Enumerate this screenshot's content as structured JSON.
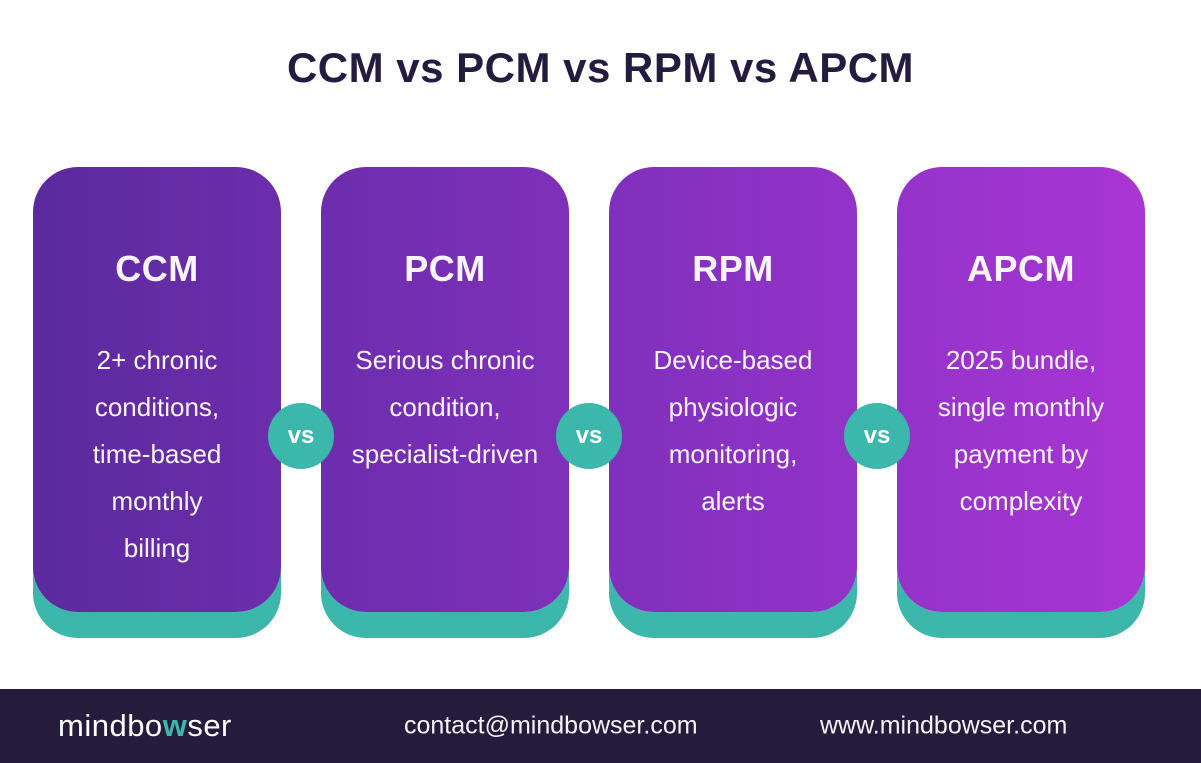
{
  "title": "CCM vs PCM vs RPM vs APCM",
  "vs_label": "vs",
  "colors": {
    "background": "#ffffff",
    "title_text": "#241c3e",
    "card_text": "#f8f4fc",
    "teal_accent": "#3bb7ab",
    "footer_bg": "#251c3c",
    "footer_text": "#f5f2f8"
  },
  "cards": [
    {
      "name": "CCM",
      "description_lines": [
        "2+ chronic",
        "conditions,",
        "time-based",
        "monthly",
        "billing"
      ],
      "gradient_start": "#5b2a9e",
      "gradient_end": "#6c2dac"
    },
    {
      "name": "PCM",
      "description_lines": [
        "Serious chronic",
        "condition,",
        "specialist-driven"
      ],
      "gradient_start": "#6d2dad",
      "gradient_end": "#7f30bb"
    },
    {
      "name": "RPM",
      "description_lines": [
        "Device-based",
        "physiologic",
        "monitoring,",
        "alerts"
      ],
      "gradient_start": "#8030bc",
      "gradient_end": "#9333c9"
    },
    {
      "name": "APCM",
      "description_lines": [
        "2025 bundle,",
        "single monthly",
        "payment by",
        "complexity"
      ],
      "gradient_start": "#9433ca",
      "gradient_end": "#a935d4"
    }
  ],
  "footer": {
    "logo_part1": "mindbo",
    "logo_accent": "w",
    "logo_part2": "ser",
    "email": "contact@mindbowser.com",
    "website": "www.mindbowser.com"
  }
}
